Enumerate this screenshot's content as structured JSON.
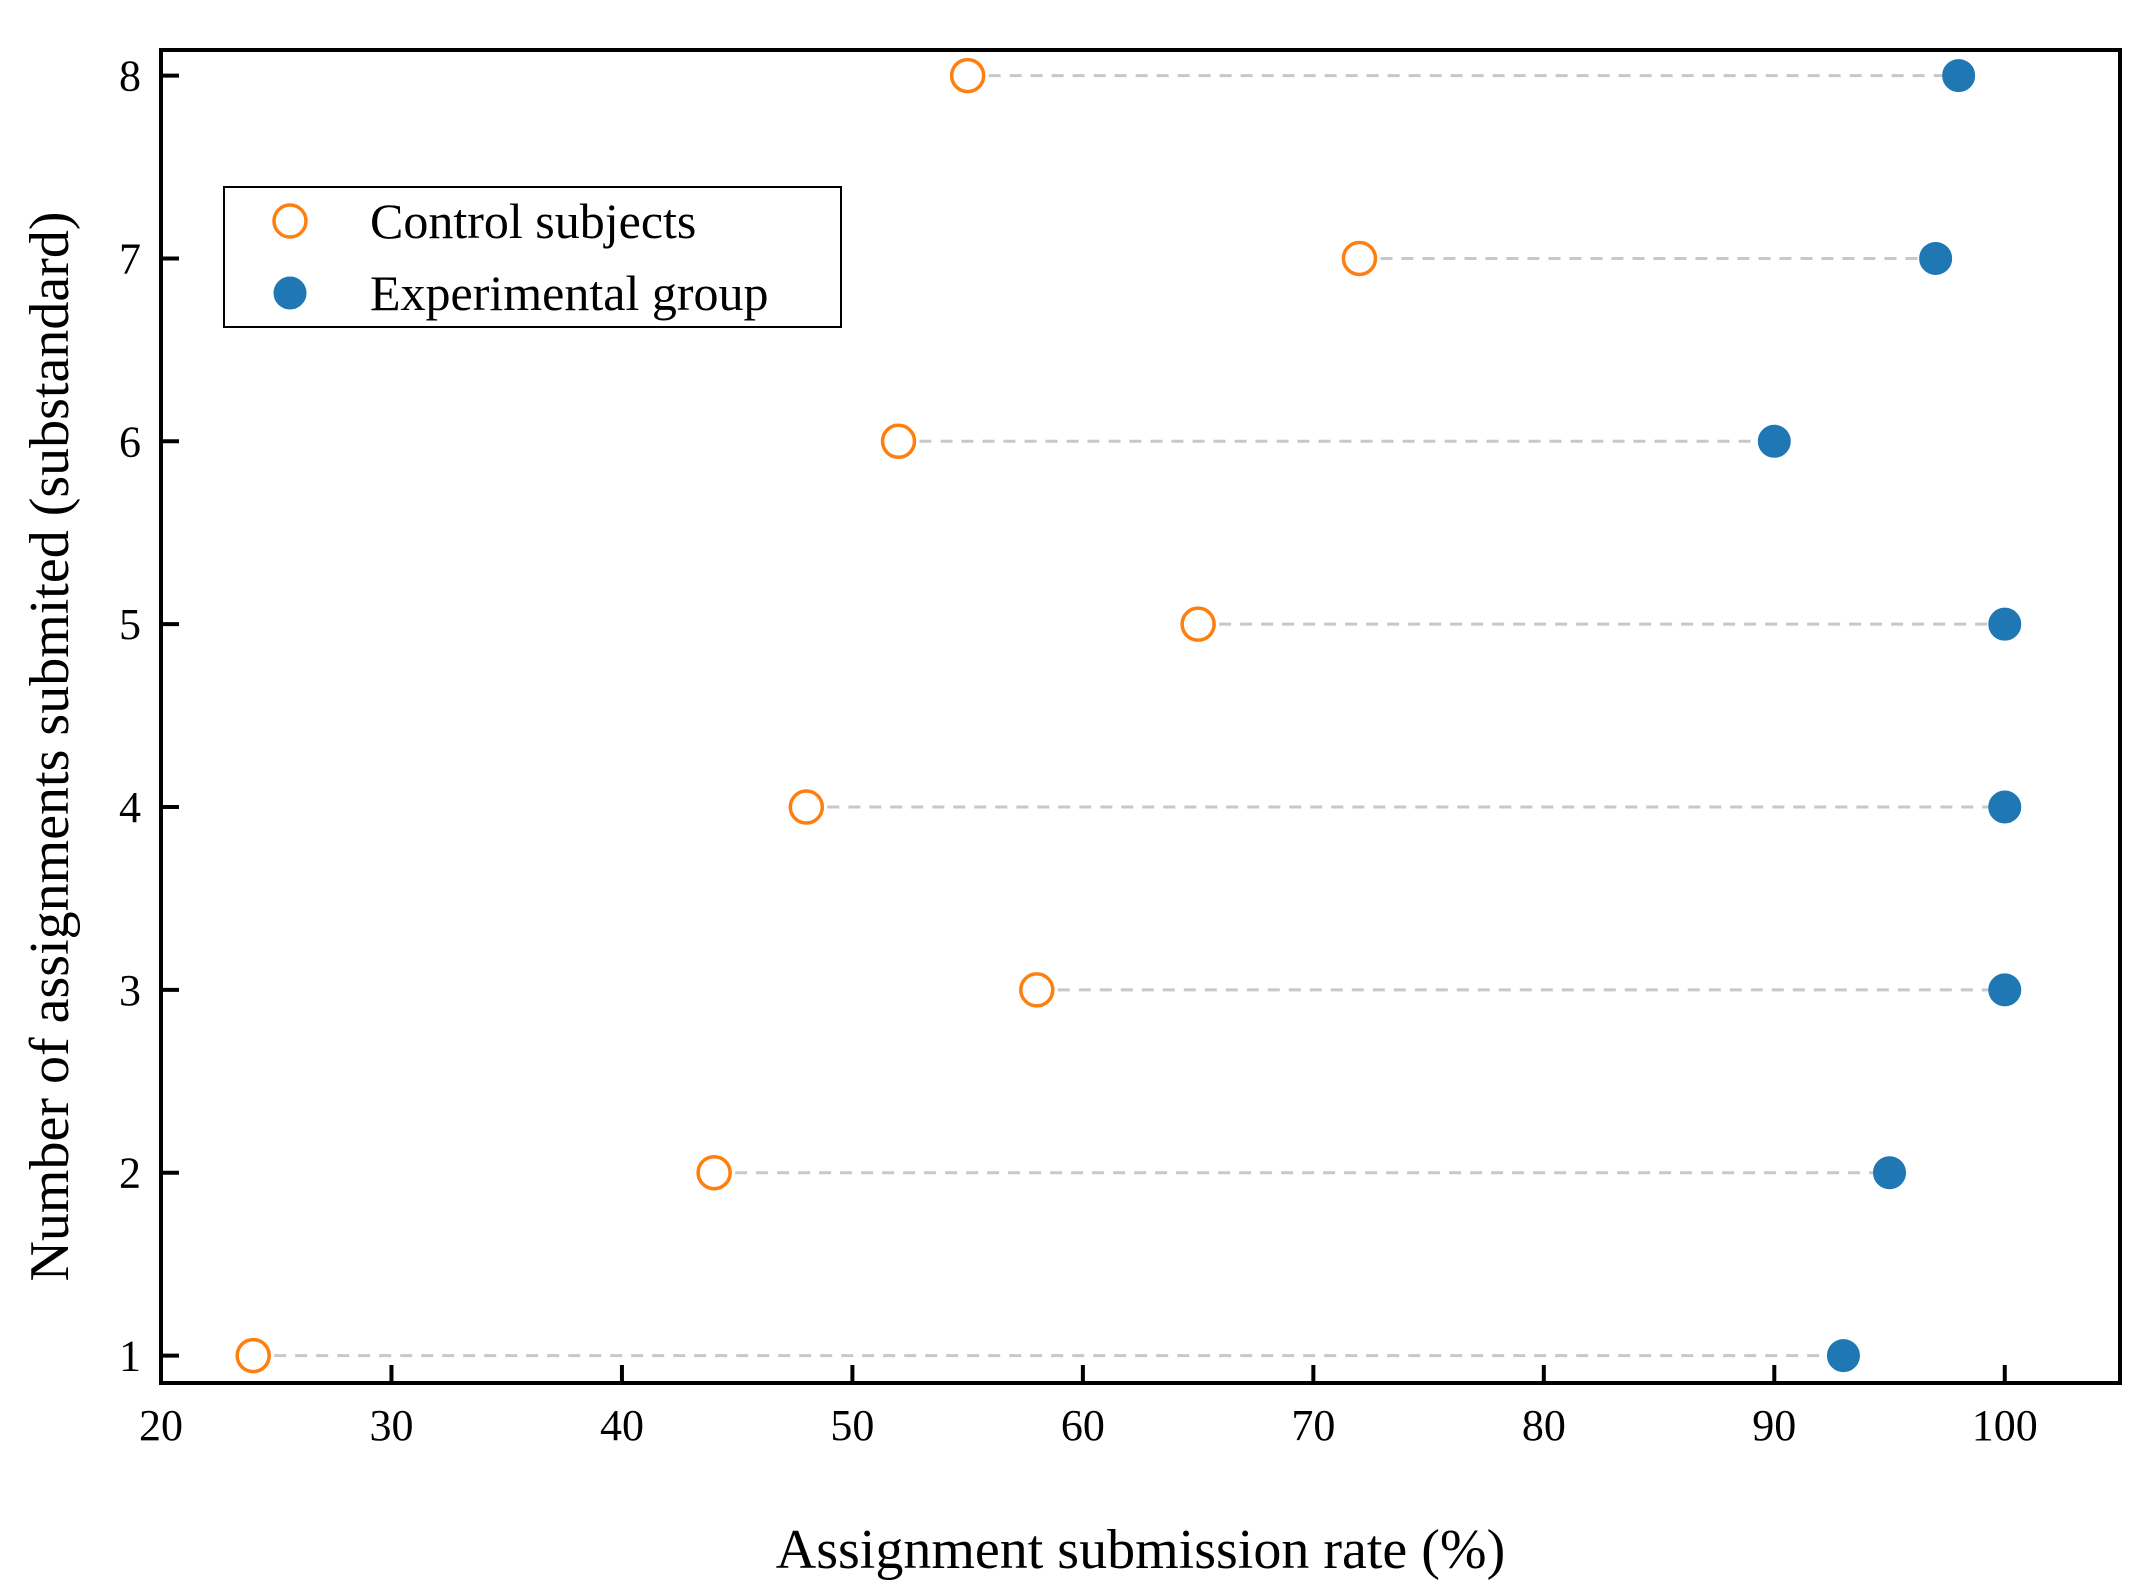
{
  "chart_data": {
    "type": "scatter",
    "xlabel": "Assignment submission rate (%)",
    "ylabel": "Number of assignments submited (substandard)",
    "xlim": [
      20,
      105
    ],
    "ylim": [
      0.85,
      8.14
    ],
    "x_ticks": [
      20,
      30,
      40,
      50,
      60,
      70,
      80,
      90,
      100
    ],
    "y_ticks": [
      1,
      2,
      3,
      4,
      5,
      6,
      7,
      8
    ],
    "legend_position": "upper-left",
    "connectors": "dashed gray lines join the two markers of each assignment",
    "series": [
      {
        "name": "Control subjects",
        "marker": "open-circle",
        "color": "#ff7f0e",
        "points": [
          {
            "x": 24,
            "y": 1
          },
          {
            "x": 44,
            "y": 2
          },
          {
            "x": 58,
            "y": 3
          },
          {
            "x": 48,
            "y": 4
          },
          {
            "x": 65,
            "y": 5
          },
          {
            "x": 52,
            "y": 6
          },
          {
            "x": 72,
            "y": 7
          },
          {
            "x": 55,
            "y": 8
          }
        ]
      },
      {
        "name": "Experimental group",
        "marker": "filled-circle",
        "color": "#1f77b4",
        "points": [
          {
            "x": 93,
            "y": 1
          },
          {
            "x": 95,
            "y": 2
          },
          {
            "x": 100,
            "y": 3
          },
          {
            "x": 100,
            "y": 4
          },
          {
            "x": 100,
            "y": 5
          },
          {
            "x": 90,
            "y": 6
          },
          {
            "x": 97,
            "y": 7
          },
          {
            "x": 98,
            "y": 8
          }
        ]
      }
    ]
  }
}
